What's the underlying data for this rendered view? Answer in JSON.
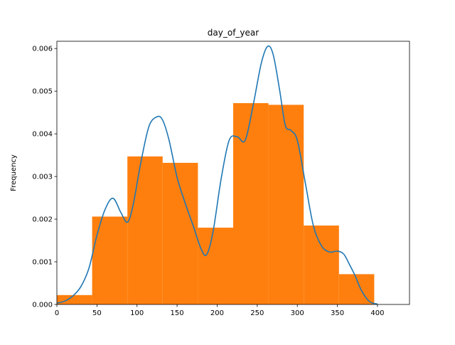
{
  "chart_data": {
    "type": "bar",
    "title": "day_of_year",
    "xlabel": "",
    "ylabel": "Frequency",
    "xlim": [
      0,
      440
    ],
    "ylim": [
      0,
      0.00617
    ],
    "xticks": [
      {
        "value": 0,
        "label": "0"
      },
      {
        "value": 50,
        "label": "50"
      },
      {
        "value": 100,
        "label": "100"
      },
      {
        "value": 150,
        "label": "150"
      },
      {
        "value": 200,
        "label": "200"
      },
      {
        "value": 250,
        "label": "250"
      },
      {
        "value": 300,
        "label": "300"
      },
      {
        "value": 350,
        "label": "350"
      },
      {
        "value": 400,
        "label": "400"
      }
    ],
    "yticks": [
      {
        "value": 0,
        "label": "0.000"
      },
      {
        "value": 0.001,
        "label": "0.001"
      },
      {
        "value": 0.002,
        "label": "0.002"
      },
      {
        "value": 0.003,
        "label": "0.003"
      },
      {
        "value": 0.004,
        "label": "0.004"
      },
      {
        "value": 0.005,
        "label": "0.005"
      },
      {
        "value": 0.006,
        "label": "0.006"
      }
    ],
    "grid": false,
    "histogram": {
      "color": "#ff7f0e",
      "bins": [
        {
          "start": 0,
          "end": 44,
          "value": 0.00022
        },
        {
          "start": 44,
          "end": 88,
          "value": 0.00206
        },
        {
          "start": 88,
          "end": 132,
          "value": 0.00347
        },
        {
          "start": 132,
          "end": 176,
          "value": 0.00332
        },
        {
          "start": 176,
          "end": 220,
          "value": 0.0018
        },
        {
          "start": 220,
          "end": 264,
          "value": 0.00472
        },
        {
          "start": 264,
          "end": 308,
          "value": 0.00468
        },
        {
          "start": 308,
          "end": 352,
          "value": 0.00185
        },
        {
          "start": 352,
          "end": 396,
          "value": 0.00071
        }
      ]
    },
    "density_curve": {
      "color": "#1f77b4",
      "x": [
        0,
        10,
        20,
        30,
        40,
        50,
        60,
        70,
        80,
        88,
        95,
        105,
        115,
        125,
        132,
        140,
        150,
        160,
        170,
        180,
        187,
        195,
        205,
        215,
        225,
        235,
        245,
        255,
        263,
        270,
        278,
        285,
        292,
        300,
        310,
        320,
        330,
        340,
        350,
        358,
        365,
        372,
        380,
        390,
        400
      ],
      "y": [
        3e-05,
        8e-05,
        0.0002,
        0.00042,
        0.00085,
        0.00162,
        0.00222,
        0.00249,
        0.00215,
        0.00193,
        0.00232,
        0.00335,
        0.00418,
        0.0044,
        0.00432,
        0.00385,
        0.00298,
        0.00238,
        0.00185,
        0.0013,
        0.00117,
        0.00172,
        0.00295,
        0.00385,
        0.00393,
        0.00385,
        0.00468,
        0.00565,
        0.00605,
        0.00585,
        0.00502,
        0.0042,
        0.00408,
        0.00385,
        0.00285,
        0.00185,
        0.00138,
        0.00123,
        0.00125,
        0.00118,
        0.00094,
        0.00068,
        0.00033,
        7e-05,
        1e-05
      ]
    }
  }
}
